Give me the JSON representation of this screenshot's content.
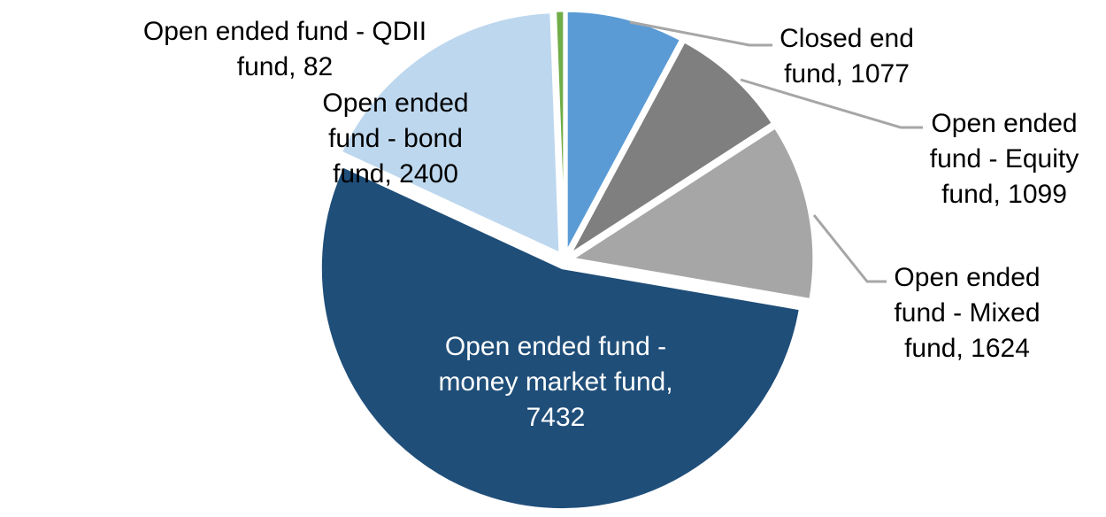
{
  "chart_data": {
    "type": "pie",
    "title": "",
    "legend": "none",
    "background_color": "#FFFFFF",
    "label_font_color": "#000000",
    "inside_label_font_color": "#FFFFFF",
    "leader_line_color": "#A6A6A6",
    "start_angle_deg": 0,
    "direction": "clockwise",
    "slices": [
      {
        "id": "closed-end-fund",
        "label": "Closed end fund",
        "value": 1077,
        "color": "#5B9BD5",
        "label_lines": [
          "Closed end",
          "fund, 1077"
        ]
      },
      {
        "id": "open-ended-equity-fund",
        "label": "Open ended fund - Equity fund",
        "value": 1099,
        "color": "#7F7F7F",
        "label_lines": [
          "Open ended",
          "fund - Equity",
          "fund, 1099"
        ]
      },
      {
        "id": "open-ended-mixed-fund",
        "label": "Open ended fund - Mixed fund",
        "value": 1624,
        "color": "#A6A6A6",
        "label_lines": [
          "Open ended",
          "fund - Mixed",
          "fund, 1624"
        ]
      },
      {
        "id": "open-ended-money-market-fund",
        "label": "Open ended fund - money market fund",
        "value": 7432,
        "color": "#1F4E79",
        "label_lines": [
          "Open ended fund -",
          "money market fund,",
          "7432"
        ]
      },
      {
        "id": "open-ended-bond-fund",
        "label": "Open ended fund - bond fund",
        "value": 2400,
        "color": "#BDD7EE",
        "label_lines": [
          "Open ended",
          "fund - bond",
          "fund, 2400"
        ]
      },
      {
        "id": "open-ended-qdii-fund",
        "label": "Open ended fund - QDII fund",
        "value": 82,
        "color": "#70AD47",
        "label_lines": [
          "Open ended fund - QDII",
          "fund, 82"
        ]
      }
    ]
  }
}
